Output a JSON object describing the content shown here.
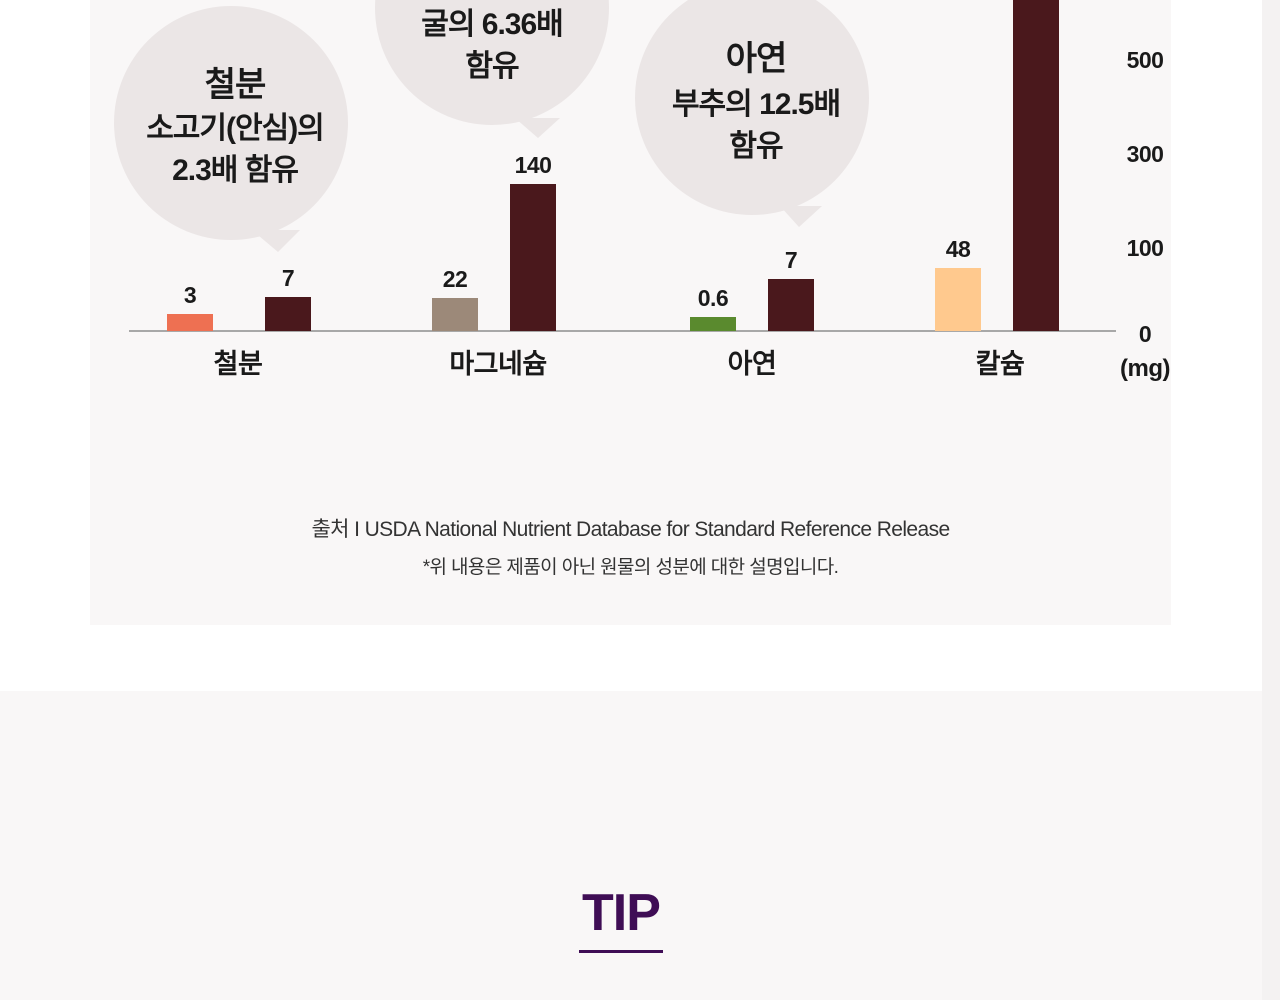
{
  "chart_data": {
    "type": "bar",
    "categories": [
      "철분",
      "마그네슘",
      "아연",
      "칼슘"
    ],
    "series": [
      {
        "values": [
          3,
          22,
          0.6,
          48
        ],
        "colors": [
          "#ee7052",
          "#9c8979",
          "#5a8a2e",
          "#ffc98e"
        ]
      },
      {
        "values": [
          7,
          140,
          7,
          null
        ],
        "color": "#4a181c"
      }
    ],
    "value_labels": [
      [
        "3",
        "7"
      ],
      [
        "22",
        "140"
      ],
      [
        "0.6",
        "7"
      ],
      [
        "48",
        ""
      ]
    ],
    "y_ticks": [
      "500",
      "300",
      "100",
      "0"
    ],
    "y_unit": "(mg)",
    "grid": false,
    "callouts": [
      {
        "lines": [
          "철분",
          "소고기(안심)의",
          "2.3배 함유"
        ]
      },
      {
        "lines": [
          "굴의 6.36배",
          "함유"
        ]
      },
      {
        "lines": [
          "아연",
          "부추의 12.5배",
          "함유"
        ]
      }
    ]
  },
  "source": {
    "line1": "출처 I USDA National Nutrient Database for Standard Reference Release",
    "line2": "*위 내용은 제품이 아닌 원물의 성분에 대한 설명입니다."
  },
  "tip": {
    "title": "TIP"
  }
}
